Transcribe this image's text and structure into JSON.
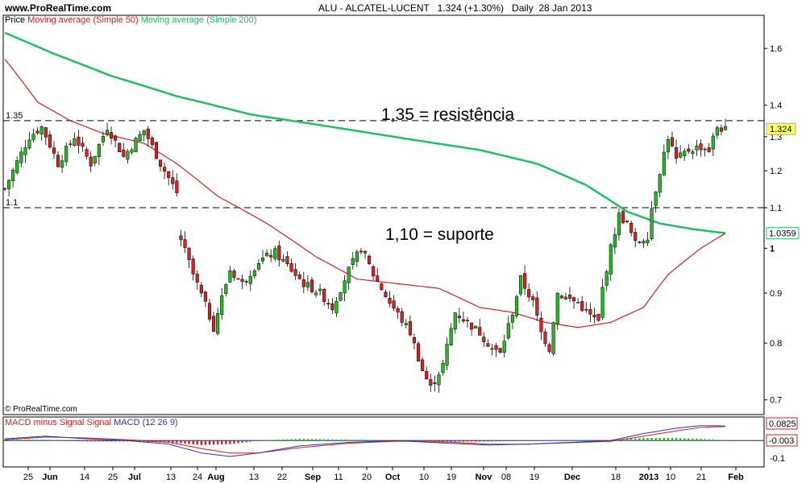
{
  "header": {
    "site": "www.ProRealTime.com",
    "ticker": "ALU - ALCATEL-LUCENT",
    "quote": "1.324 (+1.30%)",
    "period": "Daily",
    "date": "28 Jan 2013"
  },
  "legend": {
    "price": "Price",
    "ma50": "Moving average (Simple 50)",
    "ma200": "Moving average (Simple 200)"
  },
  "annotations": {
    "resistance": "1,35 = resistência",
    "support": "1,10 = suporte",
    "res_level_label": "1.35",
    "sup_level_label": "1.1"
  },
  "copyright": "© ProRealTime.com",
  "macd_legend": {
    "part1": "MACD minus Signal Signal",
    "part2": "MACD (12 26 9)"
  },
  "colors": {
    "up_candle": "#22bb22",
    "down_candle": "#dd2020",
    "ma50": "#dd2020",
    "ma200": "#1fc065",
    "macd_line": "#3030c0",
    "signal_line": "#d42020",
    "zero_line": "#1a1aa0"
  },
  "chart_data": {
    "type": "candlestick",
    "y_scale": "log",
    "ylim": [
      0.68,
      1.72
    ],
    "yticks": [
      0.7,
      0.8,
      0.9,
      1,
      1.1,
      1.2,
      1.3,
      1.4,
      1.6
    ],
    "ytick_labels": [
      "0.7",
      "0.8",
      "0.9",
      "1",
      "1.1",
      "1.2",
      "1.3",
      "1.4",
      "1.6"
    ],
    "xticks": [
      "25",
      "Jun",
      "14",
      "25",
      "Jul",
      "13",
      "24",
      "Aug",
      "13",
      "22",
      "Sep",
      "11",
      "20",
      "Oct",
      "10",
      "19",
      "Nov",
      "08",
      "19",
      "Dec",
      "18",
      "2013",
      "10",
      "21",
      "Feb"
    ],
    "horizontal_lines": [
      {
        "level": 1.35,
        "style": "dashed",
        "meaning": "resistance"
      },
      {
        "level": 1.1,
        "style": "dashed",
        "meaning": "support"
      }
    ],
    "last_price": 1.324,
    "last_ma200": 1.0359,
    "price_waypoints": [
      {
        "i": 0,
        "price": 1.15
      },
      {
        "i": 6,
        "price": 1.3
      },
      {
        "i": 9,
        "price": 1.33
      },
      {
        "i": 13,
        "price": 1.22
      },
      {
        "i": 17,
        "price": 1.3
      },
      {
        "i": 21,
        "price": 1.22
      },
      {
        "i": 25,
        "price": 1.33
      },
      {
        "i": 29,
        "price": 1.24
      },
      {
        "i": 34,
        "price": 1.32
      },
      {
        "i": 38,
        "price": 1.22
      },
      {
        "i": 42,
        "price": 1.14
      },
      {
        "i": 43,
        "price": 1.02
      },
      {
        "i": 46,
        "price": 0.94
      },
      {
        "i": 51,
        "price": 0.83
      },
      {
        "i": 55,
        "price": 0.95
      },
      {
        "i": 58,
        "price": 0.92
      },
      {
        "i": 62,
        "price": 0.97
      },
      {
        "i": 66,
        "price": 0.99
      },
      {
        "i": 70,
        "price": 0.95
      },
      {
        "i": 73,
        "price": 0.92
      },
      {
        "i": 77,
        "price": 0.9
      },
      {
        "i": 80,
        "price": 0.87
      },
      {
        "i": 84,
        "price": 0.95
      },
      {
        "i": 87,
        "price": 1.0
      },
      {
        "i": 90,
        "price": 0.94
      },
      {
        "i": 94,
        "price": 0.88
      },
      {
        "i": 99,
        "price": 0.82
      },
      {
        "i": 102,
        "price": 0.75
      },
      {
        "i": 104,
        "price": 0.72
      },
      {
        "i": 107,
        "price": 0.76
      },
      {
        "i": 110,
        "price": 0.86
      },
      {
        "i": 113,
        "price": 0.84
      },
      {
        "i": 116,
        "price": 0.82
      },
      {
        "i": 119,
        "price": 0.79
      },
      {
        "i": 121,
        "price": 0.78
      },
      {
        "i": 124,
        "price": 0.86
      },
      {
        "i": 126,
        "price": 0.93
      },
      {
        "i": 129,
        "price": 0.88
      },
      {
        "i": 131,
        "price": 0.82
      },
      {
        "i": 133,
        "price": 0.79
      },
      {
        "i": 135,
        "price": 0.9
      },
      {
        "i": 137,
        "price": 0.89
      },
      {
        "i": 140,
        "price": 0.88
      },
      {
        "i": 142,
        "price": 0.86
      },
      {
        "i": 145,
        "price": 0.84
      },
      {
        "i": 146,
        "price": 0.91
      },
      {
        "i": 148,
        "price": 1.0
      },
      {
        "i": 150,
        "price": 1.08
      },
      {
        "i": 152,
        "price": 1.06
      },
      {
        "i": 154,
        "price": 1.01
      },
      {
        "i": 157,
        "price": 1.03
      },
      {
        "i": 158,
        "price": 1.1
      },
      {
        "i": 160,
        "price": 1.2
      },
      {
        "i": 162,
        "price": 1.3
      },
      {
        "i": 164,
        "price": 1.23
      },
      {
        "i": 167,
        "price": 1.26
      },
      {
        "i": 170,
        "price": 1.27
      },
      {
        "i": 172,
        "price": 1.26
      },
      {
        "i": 174,
        "price": 1.33
      },
      {
        "i": 176,
        "price": 1.32
      }
    ],
    "ma50_points": [
      {
        "i": 0,
        "price": 1.56
      },
      {
        "i": 8,
        "price": 1.41
      },
      {
        "i": 16,
        "price": 1.35
      },
      {
        "i": 24,
        "price": 1.31
      },
      {
        "i": 34,
        "price": 1.28
      },
      {
        "i": 42,
        "price": 1.22
      },
      {
        "i": 52,
        "price": 1.13
      },
      {
        "i": 64,
        "price": 1.06
      },
      {
        "i": 76,
        "price": 0.98
      },
      {
        "i": 86,
        "price": 0.93
      },
      {
        "i": 96,
        "price": 0.92
      },
      {
        "i": 106,
        "price": 0.91
      },
      {
        "i": 116,
        "price": 0.87
      },
      {
        "i": 124,
        "price": 0.86
      },
      {
        "i": 132,
        "price": 0.84
      },
      {
        "i": 140,
        "price": 0.83
      },
      {
        "i": 148,
        "price": 0.84
      },
      {
        "i": 156,
        "price": 0.87
      },
      {
        "i": 162,
        "price": 0.94
      },
      {
        "i": 170,
        "price": 1.0
      },
      {
        "i": 176,
        "price": 1.036
      }
    ],
    "ma200_points": [
      {
        "i": 0,
        "price": 1.66
      },
      {
        "i": 12,
        "price": 1.58
      },
      {
        "i": 26,
        "price": 1.5
      },
      {
        "i": 42,
        "price": 1.43
      },
      {
        "i": 60,
        "price": 1.37
      },
      {
        "i": 80,
        "price": 1.33
      },
      {
        "i": 100,
        "price": 1.29
      },
      {
        "i": 116,
        "price": 1.26
      },
      {
        "i": 130,
        "price": 1.22
      },
      {
        "i": 142,
        "price": 1.16
      },
      {
        "i": 152,
        "price": 1.09
      },
      {
        "i": 160,
        "price": 1.06
      },
      {
        "i": 168,
        "price": 1.046
      },
      {
        "i": 176,
        "price": 1.036
      }
    ],
    "macd": {
      "legend": "MACD minus Signal Signal MACD (12 26 9)",
      "yticks": [
        -0.1
      ],
      "ytick_labels": [
        "-0.1"
      ],
      "last_macd": 0.0825,
      "last_signal": -0.003,
      "ylim": [
        -0.14,
        0.12
      ]
    }
  }
}
